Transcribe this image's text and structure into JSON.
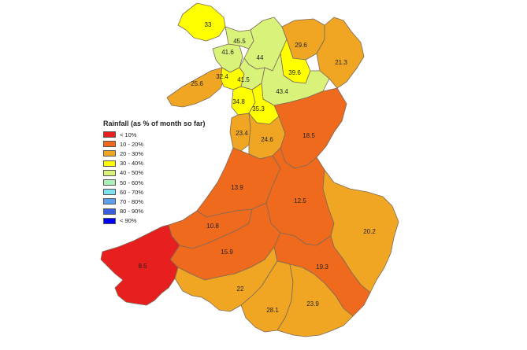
{
  "legend": {
    "title": "Rainfall (as % of month so far)",
    "items": [
      {
        "label": "< 10%",
        "color": "#e81f1f"
      },
      {
        "label": "10 - 20%",
        "color": "#ef6a1d"
      },
      {
        "label": "20 - 30%",
        "color": "#f0a622"
      },
      {
        "label": "30 - 40%",
        "color": "#ffff00"
      },
      {
        "label": "40 - 50%",
        "color": "#d9f27a"
      },
      {
        "label": "50 - 60%",
        "color": "#a8f0b8"
      },
      {
        "label": "60 - 70%",
        "color": "#7fe0f0"
      },
      {
        "label": "70 - 80%",
        "color": "#5aa0ee"
      },
      {
        "label": "80 - 90%",
        "color": "#3a5de0"
      },
      {
        "label": "< 90%",
        "color": "#0000f0"
      }
    ]
  },
  "regions": [
    {
      "id": "anglesey",
      "value": "33",
      "band": "30 - 40%"
    },
    {
      "id": "conwy-north",
      "value": "45.5",
      "band": "40 - 50%"
    },
    {
      "id": "gwynedd-north",
      "value": "41.6",
      "band": "40 - 50%"
    },
    {
      "id": "conwy",
      "value": "44",
      "band": "40 - 50%"
    },
    {
      "id": "flintshire",
      "value": "29.6",
      "band": "20 - 30%"
    },
    {
      "id": "wrexham-north",
      "value": "21.3",
      "band": "20 - 30%"
    },
    {
      "id": "lleyn",
      "value": "25.6",
      "band": "20 - 30%"
    },
    {
      "id": "snowdonia-west",
      "value": "32.4",
      "band": "30 - 40%"
    },
    {
      "id": "snowdonia",
      "value": "41.5",
      "band": "40 - 50%"
    },
    {
      "id": "denbigh",
      "value": "39.6",
      "band": "30 - 40%"
    },
    {
      "id": "dee-valley",
      "value": "43.4",
      "band": "40 - 50%"
    },
    {
      "id": "meirionnydd-west",
      "value": "34.8",
      "band": "30 - 40%"
    },
    {
      "id": "meirionnydd",
      "value": "35.3",
      "band": "30 - 40%"
    },
    {
      "id": "montgomery",
      "value": "18.5",
      "band": "10 - 20%"
    },
    {
      "id": "dyfi",
      "value": "23.4",
      "band": "20 - 30%"
    },
    {
      "id": "dyfi-east",
      "value": "24.6",
      "band": "20 - 30%"
    },
    {
      "id": "ceredigion",
      "value": "13.9",
      "band": "10 - 20%"
    },
    {
      "id": "upper-wye",
      "value": "12.5",
      "band": "10 - 20%"
    },
    {
      "id": "monmouth",
      "value": "20.2",
      "band": "20 - 30%"
    },
    {
      "id": "teifi",
      "value": "10.8",
      "band": "10 - 20%"
    },
    {
      "id": "tywi",
      "value": "15.9",
      "band": "10 - 20%"
    },
    {
      "id": "pembrokeshire",
      "value": "8.5",
      "band": "< 10%"
    },
    {
      "id": "usk",
      "value": "19.3",
      "band": "10 - 20%"
    },
    {
      "id": "gower",
      "value": "22",
      "band": "20 - 30%"
    },
    {
      "id": "glamorgan-west",
      "value": "28.1",
      "band": "20 - 30%"
    },
    {
      "id": "glamorgan-east",
      "value": "23.9",
      "band": "20 - 30%"
    }
  ]
}
